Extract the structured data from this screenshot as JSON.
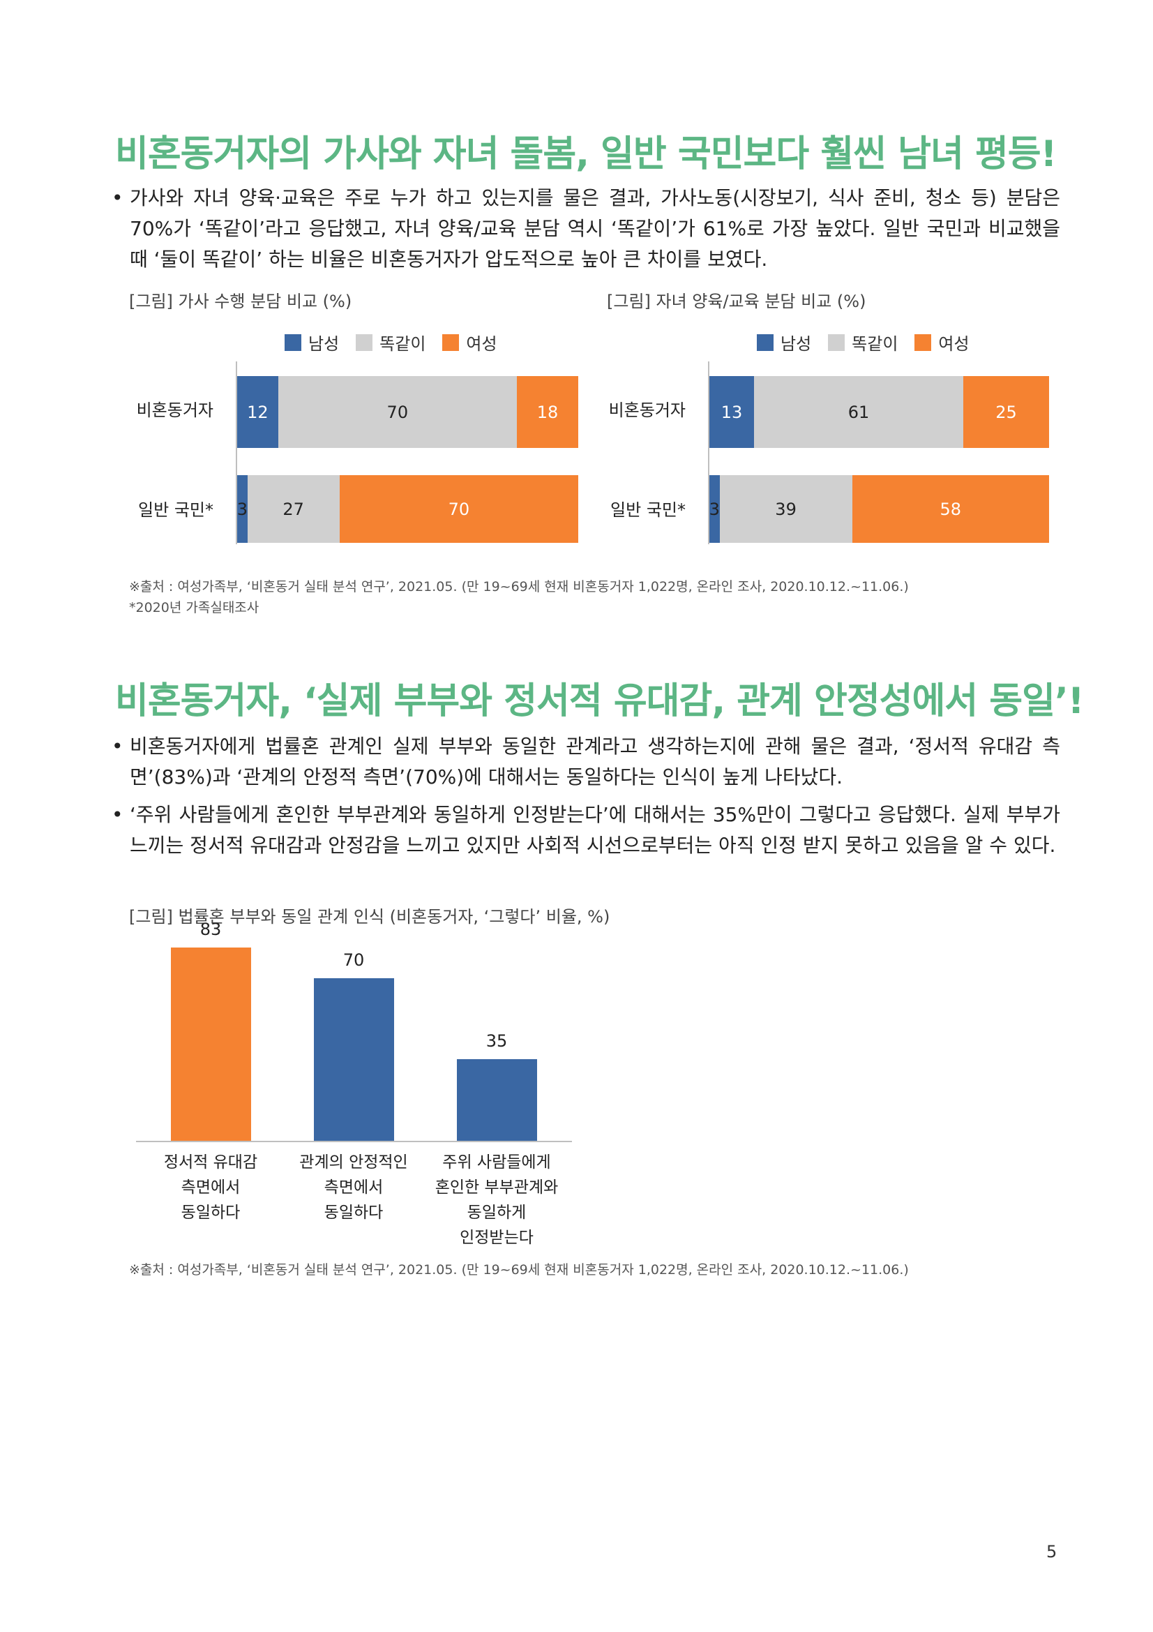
{
  "section1": {
    "title": "비혼동거자의 가사와 자녀 돌봄, 일반 국민보다 훨씬 남녀 평등!",
    "bullets": [
      "가사와 자녀 양육·교육은 주로 누가 하고 있는지를 물은 결과, 가사노동(시장보기, 식사 준비, 청소 등) 분담은 70%가 ‘똑같이’라고 응답했고, 자녀 양육/교육 분담 역시 ‘똑같이’가 61%로 가장 높았다. 일반 국민과 비교했을 때 ‘둘이 똑같이’ 하는 비율은 비혼동거자가 압도적으로 높아 큰 차이를 보였다."
    ]
  },
  "legend": {
    "male": "남성",
    "same": "똑같이",
    "female": "여성"
  },
  "colors": {
    "male": "#3a67a3",
    "same": "#d0d0d0",
    "female": "#f58231",
    "heading": "#5cb684"
  },
  "chart_data": [
    {
      "type": "bar",
      "orientation": "horizontal-stacked",
      "title": "[그림] 가사 수행 분담 비교 (%)",
      "categories": [
        "비혼동거자",
        "일반 국민*"
      ],
      "series": [
        {
          "name": "남성",
          "values": [
            12,
            3
          ]
        },
        {
          "name": "똑같이",
          "values": [
            70,
            27
          ]
        },
        {
          "name": "여성",
          "values": [
            18,
            70
          ]
        }
      ]
    },
    {
      "type": "bar",
      "orientation": "horizontal-stacked",
      "title": "[그림] 자녀 양육/교육 분담 비교 (%)",
      "categories": [
        "비혼동거자",
        "일반 국민*"
      ],
      "series": [
        {
          "name": "남성",
          "values": [
            13,
            3
          ]
        },
        {
          "name": "똑같이",
          "values": [
            61,
            39
          ]
        },
        {
          "name": "여성",
          "values": [
            25,
            58
          ]
        }
      ]
    },
    {
      "type": "bar",
      "title": "[그림] 법률혼 부부와 동일 관계 인식 (비혼동거자, ‘그렇다’ 비율, %)",
      "categories": [
        "정서적 유대감 측면에서 동일하다",
        "관계의 안정적인 측면에서 동일하다",
        "주위 사람들에게 혼인한 부부관계와 동일하게 인정받는다"
      ],
      "category_lines": [
        [
          "정서적 유대감",
          "측면에서",
          "동일하다"
        ],
        [
          "관계의 안정적인",
          "측면에서",
          "동일하다"
        ],
        [
          "주위 사람들에게",
          "혼인한 부부관계와",
          "동일하게",
          "인정받는다"
        ]
      ],
      "values": [
        83,
        70,
        35
      ],
      "bar_colors": [
        "#f58231",
        "#3a67a3",
        "#3a67a3"
      ],
      "ylim": [
        0,
        90
      ]
    }
  ],
  "source1": "※출처 : 여성가족부, ‘비혼동거 실태 분석 연구’, 2021.05. (만 19~69세 현재 비혼동거자 1,022명, 온라인 조사, 2020.10.12.~11.06.)",
  "footnote1": "*2020년 가족실태조사",
  "section2": {
    "title": "비혼동거자, ‘실제 부부와 정서적 유대감, 관계 안정성에서 동일’!",
    "bullets": [
      "비혼동거자에게 법률혼 관계인 실제 부부와 동일한 관계라고 생각하는지에 관해 물은 결과, ‘정서적 유대감 측면’(83%)과 ‘관계의 안정적 측면’(70%)에 대해서는 동일하다는 인식이 높게 나타났다.",
      "‘주위 사람들에게 혼인한 부부관계와 동일하게 인정받는다’에 대해서는 35%만이 그렇다고 응답했다. 실제 부부가 느끼는 정서적 유대감과 안정감을 느끼고 있지만 사회적 시선으로부터는 아직 인정 받지 못하고 있음을 알 수 있다."
    ]
  },
  "source2": "※출처 : 여성가족부, ‘비혼동거 실태 분석 연구’, 2021.05. (만 19~69세 현재 비혼동거자 1,022명, 온라인 조사, 2020.10.12.~11.06.)",
  "page_number": "5"
}
